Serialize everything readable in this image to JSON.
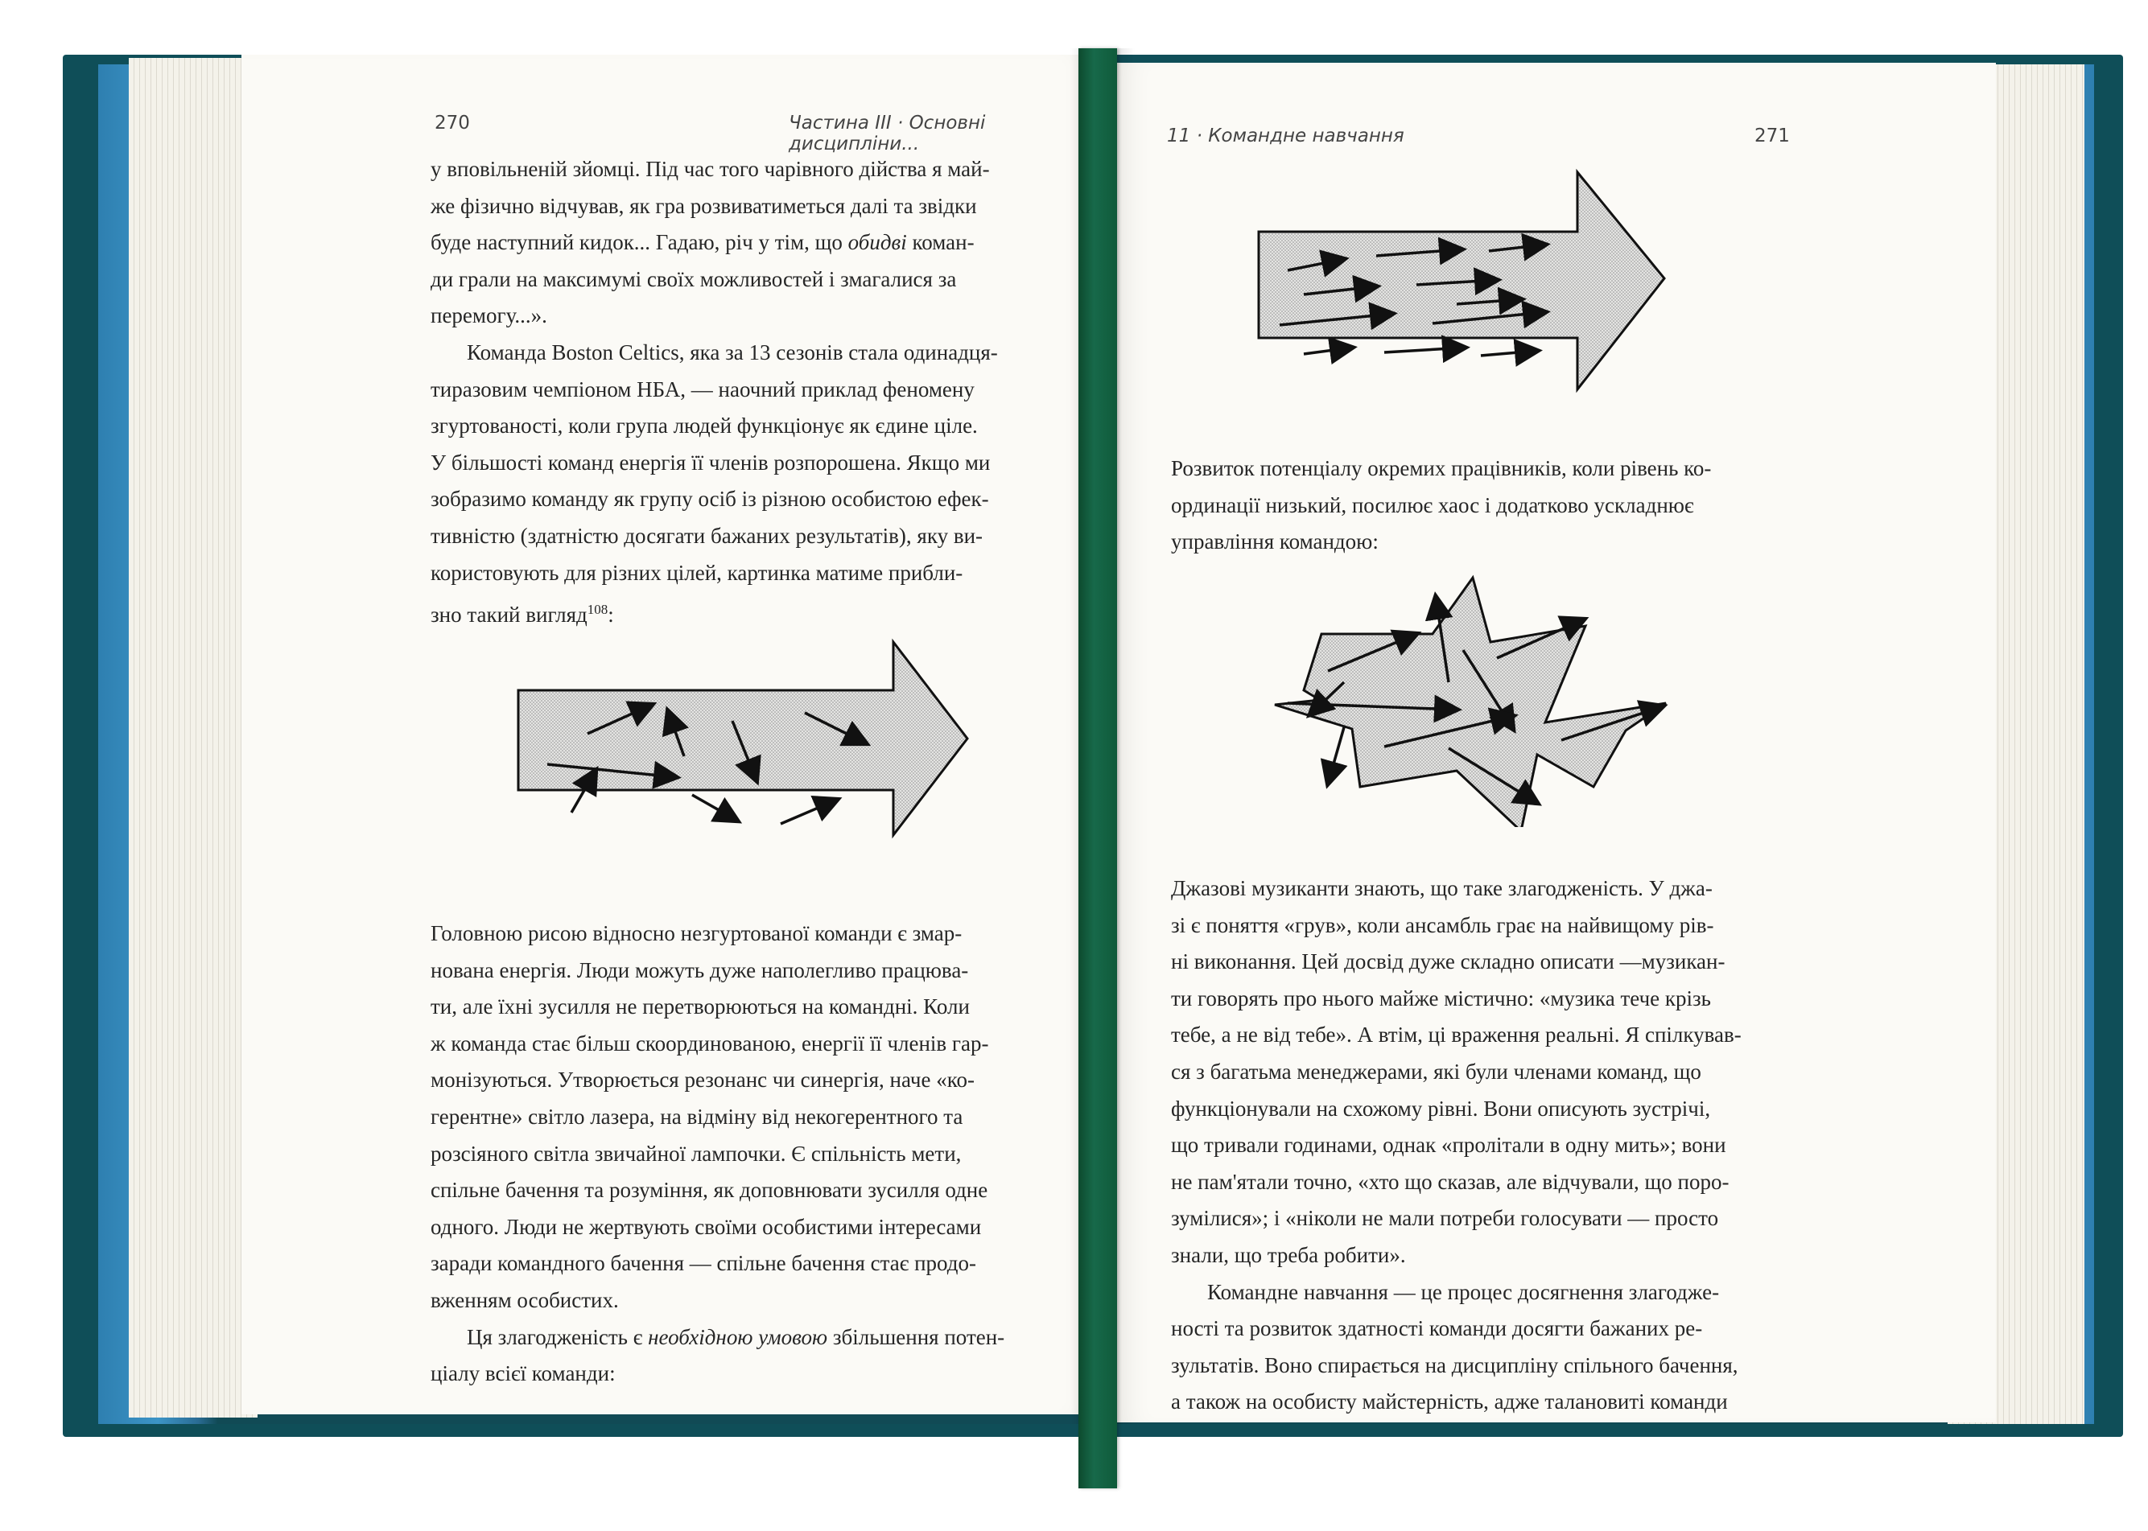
{
  "left_page": {
    "page_number": "270",
    "running_head": "Частина III · Основні дисципліни...",
    "top_lines": [
      "у вповільненій зйомці. Під час того чарівного дійства я май-",
      "же фізично відчував, як гра розвиватиметься далі та звідки",
      "буде наступний кидок... Гадаю, річ у тім, що ",
      "обидві",
      " коман-",
      "ди грали на максимумі своїх можливостей і змагалися за",
      "перемогу...»."
    ],
    "para_celtics": [
      "Команда Boston Celtics, яка за 13 сезонів стала одинадця-",
      "тиразовим чемпіоном НБА, — наочний приклад феномену",
      "згуртованості, коли група людей функціонує як єдине ціле.",
      "У більшості команд енергія її членів розпорошена. Якщо ми",
      "зобразимо команду як групу осіб із різною особистою ефек-",
      "тивністю (здатністю досягати бажаних результатів), яку ви-",
      "користовують для різних цілей, картинка матиме прибли-",
      "зно такий вигляд"
    ],
    "footnote_ref": "108",
    "colon": ":",
    "para_energy": [
      "Головною рисою відносно незгуртованої команди є змар-",
      "нована енергія. Люди можуть дуже наполегливо працюва-",
      "ти, але їхні зусилля не перетворюються на командні. Коли",
      "ж команда стає більш скоординованою, енергії її членів гар-",
      "монізуються. Утворюється резонанс чи синергія, наче «ко-",
      "герентне» світло лазера, на відміну від некогерентного та",
      "розсіяного світла звичайної лампочки. Є спільність мети,",
      "спільне бачення та розуміння, як доповнювати зусилля одне",
      "одного. Люди не жертвують своїми особистими інтересами",
      "заради командного бачення — спільне бачення стає продо-",
      "вженням особистих."
    ],
    "para_last_a": "Ця злагодженість є ",
    "para_last_em": "необхідною умовою",
    "para_last_b": " збільшення потен-",
    "para_last_c": "ціалу всієї команди:"
  },
  "right_page": {
    "page_number": "271",
    "running_head": "11 · Командне навчання",
    "para_chaos": [
      "Розвиток потенціалу окремих працівників, коли рівень ко-",
      "ординації низький, посилює хаос і додатково ускладнює",
      "управління командою:"
    ],
    "para_jazz": [
      "Джазові музиканти знають, що таке злагодженість. У джа-",
      "зі є поняття «грув», коли ансамбль грає на найвищому рів-",
      "ні виконання. Цей досвід дуже складно описати —музикан-",
      "ти говорять про нього майже містично: «музика тече крізь",
      "тебе, а не від тебе». А втім, ці враження реальні. Я спілкував-",
      "ся з багатьма менеджерами, які були членами команд, що",
      "функціонували на схожому рівні. Вони описують зустрічі,",
      "що тривали годинами, однак «пролітали в одну мить»; вони",
      "не пам'ятали точно, «хто що сказав, але відчували, що поро-",
      "зумілися»; і «ніколи не мали потреби голосувати — просто",
      "знали, що треба робити»."
    ],
    "para_learning": [
      "Командне навчання — це процес досягнення злагодже-",
      "ності та розвиток здатності команди досягти бажаних ре-",
      "зультатів. Воно спирається на дисципліну спільного бачення,",
      "а також на особисту майстерність, адже талановиті команди"
    ]
  },
  "figures": {
    "left_arrow": "scattered-arrows-figure",
    "right_top_arrow": "aligned-arrows-figure",
    "right_star": "chaotic-star-figure"
  },
  "colors": {
    "cover": "#0f4e58",
    "ribbon": "#17694a",
    "paper": "#fbfaf6"
  }
}
